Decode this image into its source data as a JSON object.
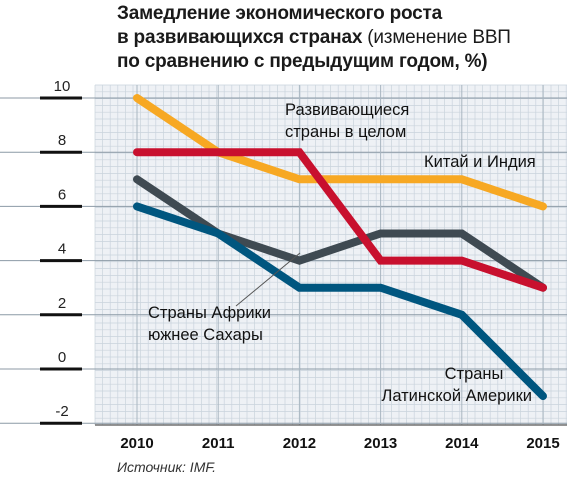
{
  "header": {
    "title_line1": "Замедление экономического роста",
    "title_line2_bold": "в развивающихся странах",
    "title_line2_rest": " (изменение ВВП",
    "title_line3": "по сравнению с предыдущим годом, %)"
  },
  "source": "Источник: IMF.",
  "chart_data": {
    "type": "line",
    "title": "Замедление экономического роста в развивающихся странах (изменение ВВП по сравнению с предыдущим годом, %)",
    "x": [
      2010,
      2011,
      2012,
      2013,
      2014,
      2015
    ],
    "x_tick_labels": [
      "2010",
      "2011",
      "2012",
      "2013",
      "2014",
      "2015"
    ],
    "y_ticks": [
      -2,
      0,
      2,
      4,
      6,
      8,
      10
    ],
    "y_tick_labels": [
      "-2",
      "0",
      "2",
      "4",
      "6",
      "8",
      "10"
    ],
    "ylim": [
      -2,
      10
    ],
    "xlabel": "",
    "ylabel": "",
    "grid": true,
    "series": [
      {
        "name": "Китай и Индия",
        "color": "#f7a823",
        "values": [
          10,
          8,
          7,
          7,
          7,
          6
        ]
      },
      {
        "name": "Развивающиеся страны в целом",
        "color": "#c8102e",
        "values": [
          8,
          8,
          8,
          4,
          4,
          3
        ]
      },
      {
        "name": "Страны Африки южнее Сахары",
        "color": "#3f4a52",
        "values": [
          7,
          5,
          4,
          5,
          5,
          3
        ]
      },
      {
        "name": "Страны Латинской Америки",
        "color": "#00567f",
        "values": [
          6,
          5,
          3,
          3,
          2,
          -1
        ]
      }
    ],
    "annotations": [
      {
        "series": 1,
        "lines": [
          "Развивающиеся",
          "страны в целом"
        ]
      },
      {
        "series": 0,
        "lines": [
          "Китай и Индия"
        ]
      },
      {
        "series": 2,
        "lines": [
          "Страны Африки",
          "южнее Сахары"
        ]
      },
      {
        "series": 3,
        "lines": [
          "Страны",
          "Латинской Америки"
        ]
      }
    ]
  }
}
